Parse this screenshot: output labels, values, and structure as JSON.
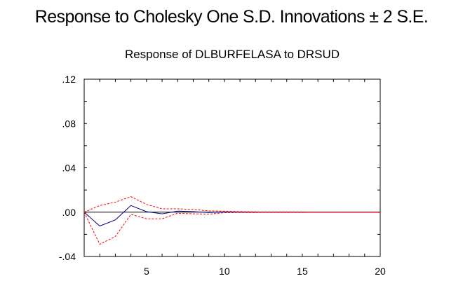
{
  "header": {
    "title": "Response to Cholesky One S.D. Innovations ± 2 S.E."
  },
  "chart_data": {
    "type": "line",
    "title": "Response of DLBURFELASA to DRSUD",
    "xlabel": "",
    "ylabel": "",
    "xlim": [
      1,
      20
    ],
    "ylim": [
      -0.04,
      0.12
    ],
    "x_ticks": [
      5,
      10,
      15,
      20
    ],
    "y_ticks": [
      -0.04,
      0.0,
      0.04,
      0.08,
      0.12
    ],
    "x_tick_labels": [
      "5",
      "10",
      "15",
      "20"
    ],
    "y_tick_labels": [
      ".12",
      ".08",
      ".04",
      ".00",
      "-.04"
    ],
    "y_tick_label_values": [
      0.12,
      0.08,
      0.04,
      0.0,
      -0.04
    ],
    "zero_line": true,
    "grid": false,
    "x": [
      1,
      2,
      3,
      4,
      5,
      6,
      7,
      8,
      9,
      10,
      11,
      12,
      13,
      14,
      15,
      16,
      17,
      18,
      19,
      20
    ],
    "series": [
      {
        "values": [
          0.0,
          -0.0125,
          -0.007,
          0.006,
          0.0005,
          -0.0015,
          0.001,
          0.0005,
          -0.0003,
          0.0002,
          0.0001,
          0.0,
          0.0,
          0.0,
          0.0,
          0.0,
          0.0,
          0.0,
          0.0,
          0.0
        ],
        "color": "#00008b",
        "style": "solid"
      },
      {
        "values": [
          0.0,
          0.006,
          0.009,
          0.014,
          0.007,
          0.003,
          0.003,
          0.0025,
          0.0012,
          0.0008,
          0.0005,
          0.0003,
          0.0002,
          0.0002,
          0.0002,
          0.0001,
          0.0001,
          0.0001,
          0.0001,
          0.0001
        ],
        "color": "#ff0000",
        "style": "dashed"
      },
      {
        "values": [
          0.0,
          -0.029,
          -0.022,
          -0.002,
          -0.006,
          -0.006,
          -0.001,
          -0.0015,
          -0.0018,
          -0.0005,
          -0.0003,
          -0.0003,
          -0.0002,
          -0.0002,
          -0.0002,
          -0.0001,
          -0.0001,
          -0.0001,
          -0.0001,
          -0.0001
        ],
        "color": "#ff0000",
        "style": "dashed"
      }
    ]
  }
}
